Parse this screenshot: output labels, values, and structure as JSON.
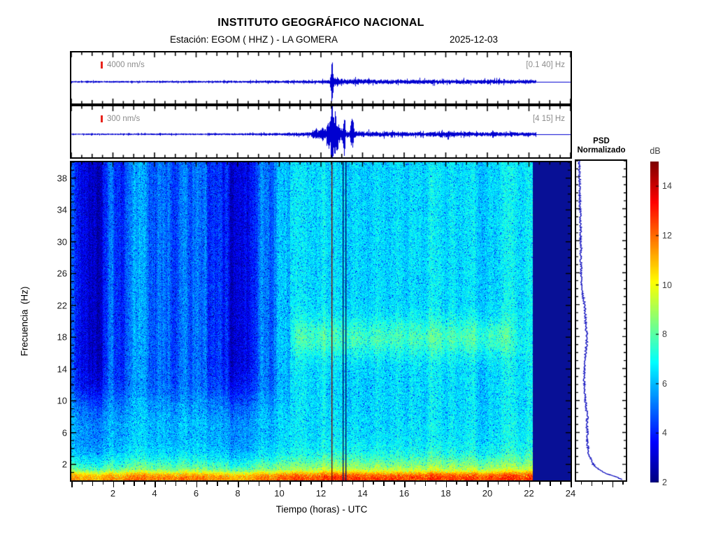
{
  "header": {
    "title": "INSTITUTO GEOGRÁFICO NACIONAL",
    "station_line": "Estación:  EGOM ( HHZ ) - LA GOMERA",
    "date": "2025-12-03"
  },
  "trace_panels": [
    {
      "scale_label": "4000 nm/s",
      "filter_label": "[0.1 40] Hz"
    },
    {
      "scale_label": "300 nm/s",
      "filter_label": "[4 15] Hz"
    }
  ],
  "psd": {
    "title_line1": "PSD",
    "title_line2": "Normalizado"
  },
  "colorbar": {
    "label": "dB",
    "ticks": [
      2,
      4,
      6,
      8,
      10,
      12,
      14
    ],
    "min": 2,
    "max": 15
  },
  "axes": {
    "x_label": "Tiempo (horas) - UTC",
    "x_ticks": [
      2,
      4,
      6,
      8,
      10,
      12,
      14,
      16,
      18,
      20,
      22,
      24
    ],
    "x_range": [
      0,
      24
    ],
    "y_label": "Frecuencia  (Hz)",
    "y_ticks": [
      2,
      6,
      10,
      14,
      18,
      22,
      26,
      30,
      34,
      38
    ],
    "y_range": [
      0,
      40
    ]
  },
  "colors": {
    "waveform_blue": "#0000d0",
    "psd_blue": "#0000bb",
    "marker_red": "#e8241c",
    "nodata_navy_rgb": [
      8,
      16,
      150
    ],
    "event_red_line": "#7a1206",
    "event_navy_line": "#000d66",
    "label_gray": "#8c8c8c",
    "tick_label": "#1a1a1a"
  },
  "chart_data": [
    {
      "id": "trace_broadband",
      "type": "line",
      "title": "Vertical seismogram EGOM HHZ, band-pass [0.1 40] Hz",
      "scale": "4000 nm/s",
      "x_unit": "hours UTC",
      "x_range": [
        0,
        24
      ],
      "data_end_hour": 22.35,
      "event_peak_hour": 12.53,
      "envelope_keypoints": [
        [
          0,
          1.3
        ],
        [
          5,
          1.4
        ],
        [
          8,
          1.6
        ],
        [
          10,
          1.9
        ],
        [
          11,
          2.2
        ],
        [
          12.0,
          2.4
        ],
        [
          12.42,
          2.8
        ],
        [
          12.5,
          34
        ],
        [
          12.56,
          36
        ],
        [
          12.62,
          9
        ],
        [
          12.8,
          5.5
        ],
        [
          13.1,
          4.5
        ],
        [
          13.5,
          4.0
        ],
        [
          14.5,
          3.6
        ],
        [
          16,
          3.3
        ],
        [
          18,
          3.1
        ],
        [
          19.5,
          3.2
        ],
        [
          21,
          3.0
        ],
        [
          22.35,
          2.6
        ]
      ]
    },
    {
      "id": "trace_4_15",
      "type": "line",
      "title": "Vertical seismogram EGOM HHZ, band-pass [4 15] Hz",
      "scale": "300 nm/s",
      "x_unit": "hours UTC",
      "x_range": [
        0,
        24
      ],
      "data_end_hour": 22.35,
      "event_peak_hour": 12.55,
      "envelope_keypoints": [
        [
          0,
          1.1
        ],
        [
          6,
          1.3
        ],
        [
          8,
          1.5
        ],
        [
          9.5,
          1.9
        ],
        [
          10.5,
          2.2
        ],
        [
          11.2,
          2.6
        ],
        [
          11.55,
          3.5
        ],
        [
          11.75,
          10
        ],
        [
          11.9,
          5
        ],
        [
          12.05,
          13
        ],
        [
          12.2,
          7
        ],
        [
          12.35,
          20
        ],
        [
          12.48,
          34
        ],
        [
          12.58,
          36
        ],
        [
          12.68,
          22
        ],
        [
          12.78,
          32
        ],
        [
          12.9,
          12
        ],
        [
          13.0,
          9
        ],
        [
          13.08,
          26
        ],
        [
          13.18,
          7
        ],
        [
          13.35,
          5
        ],
        [
          13.5,
          27
        ],
        [
          13.6,
          6
        ],
        [
          13.9,
          4.5
        ],
        [
          14.5,
          3.8
        ],
        [
          15.5,
          3.4
        ],
        [
          17,
          3.1
        ],
        [
          18.15,
          5.5
        ],
        [
          18.3,
          3.2
        ],
        [
          19.5,
          3.1
        ],
        [
          20.5,
          3.3
        ],
        [
          21.5,
          3.0
        ],
        [
          22.35,
          2.7
        ]
      ]
    },
    {
      "id": "spectrogram",
      "type": "heatmap",
      "title": "Spectrogram, power spectral density (dB)",
      "x_range_hours": [
        0,
        24
      ],
      "y_range_hz": [
        0,
        40
      ],
      "value_range_db": [
        2,
        15
      ],
      "colormap": "jet",
      "base_level_db": 6.1,
      "nodata_start_hour": 22.17,
      "features": {
        "low_freq_microseism_band": "strong energy below ~2.5 Hz reaching 11-13 dB (yellow-orange-red)",
        "quiet_high_freq_morning": "frequencies above ~8 Hz are 1-2 dB lower before ~10.5 h (blue streaky)",
        "band_18hz": {
          "center_hz": 18,
          "width_hz": 2.4,
          "gain_db": 1.25,
          "start_hour": 10.4,
          "fade_hour": 21.0
        },
        "afternoon_gain_db": 0.4,
        "event_energy": {
          "center_hour": 12.7,
          "max_freq_hz": 10,
          "gain_db": 0.6
        }
      },
      "events": [
        {
          "hour": 12.52,
          "style": "thin dark-red line"
        },
        {
          "hour": 13.03,
          "style": "thin navy line"
        },
        {
          "hour": 13.16,
          "style": "thin navy line"
        }
      ],
      "dark_streaks": [
        [
          0.45,
          0.5,
          1.4
        ],
        [
          0.95,
          0.35,
          1.1
        ],
        [
          1.35,
          0.3,
          1.0
        ],
        [
          2.55,
          0.25,
          0.9
        ],
        [
          3.8,
          0.2,
          0.7
        ],
        [
          6.6,
          0.5,
          1.0
        ],
        [
          7.3,
          0.6,
          1.3
        ],
        [
          8.15,
          0.5,
          1.2
        ],
        [
          9.0,
          0.3,
          0.8
        ],
        [
          15.2,
          0.1,
          0.6
        ],
        [
          18.55,
          0.15,
          1.2
        ]
      ],
      "bright_streaks": [
        [
          3.25,
          0.2,
          0.8
        ],
        [
          5.45,
          0.3,
          0.9
        ],
        [
          5.95,
          0.2,
          0.7
        ],
        [
          8.85,
          0.25,
          1.0
        ],
        [
          9.3,
          0.15,
          0.8
        ],
        [
          12.1,
          0.1,
          0.9
        ],
        [
          14.7,
          0.1,
          0.5
        ],
        [
          16.3,
          0.1,
          0.4
        ],
        [
          20.9,
          0.3,
          0.5
        ]
      ]
    },
    {
      "id": "psd_normalized",
      "type": "line",
      "title": "PSD Normalizado",
      "orientation": "vertical",
      "y_range_hz": [
        0,
        40
      ],
      "keypoints_freq_vs_fraction": [
        [
          0,
          0.97
        ],
        [
          0.4,
          0.82
        ],
        [
          0.8,
          0.62
        ],
        [
          1.2,
          0.5
        ],
        [
          1.6,
          0.42
        ],
        [
          2,
          0.34
        ],
        [
          2.5,
          0.3
        ],
        [
          3,
          0.27
        ],
        [
          4,
          0.24
        ],
        [
          5,
          0.22
        ],
        [
          6,
          0.23
        ],
        [
          7,
          0.21
        ],
        [
          8,
          0.23
        ],
        [
          9,
          0.2
        ],
        [
          10,
          0.19
        ],
        [
          11,
          0.17
        ],
        [
          12,
          0.17
        ],
        [
          13,
          0.16
        ],
        [
          14,
          0.17
        ],
        [
          15,
          0.18
        ],
        [
          16,
          0.19
        ],
        [
          17,
          0.21
        ],
        [
          18,
          0.22
        ],
        [
          19,
          0.2
        ],
        [
          20,
          0.19
        ],
        [
          21,
          0.18
        ],
        [
          22,
          0.17
        ],
        [
          23,
          0.14
        ],
        [
          24,
          0.12
        ],
        [
          25,
          0.11
        ],
        [
          26,
          0.1
        ],
        [
          27,
          0.1
        ],
        [
          28,
          0.09
        ],
        [
          29,
          0.1
        ],
        [
          30,
          0.09
        ],
        [
          32,
          0.09
        ],
        [
          34,
          0.08
        ],
        [
          36,
          0.07
        ],
        [
          38,
          0.07
        ],
        [
          40,
          0.06
        ]
      ]
    }
  ]
}
